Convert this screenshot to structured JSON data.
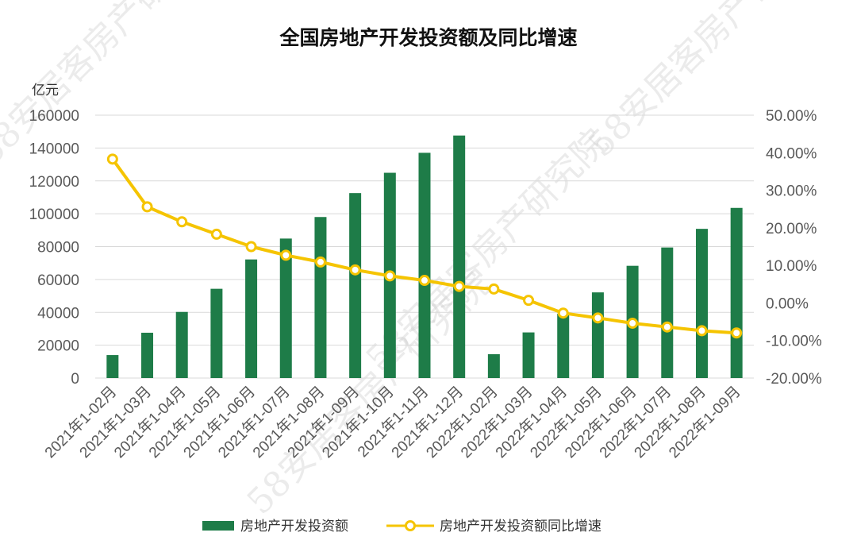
{
  "chart_data": {
    "type": "bar+line",
    "title": "全国房地产开发投资额及同比增速",
    "unit_left": "亿元",
    "categories": [
      "2021年1-02月",
      "2021年1-03月",
      "2021年1-04月",
      "2021年1-05月",
      "2021年1-06月",
      "2021年1-07月",
      "2021年1-08月",
      "2021年1-09月",
      "2021年1-10月",
      "2021年1-11月",
      "2021年1-12月",
      "2022年1-02月",
      "2022年1-03月",
      "2022年1-04月",
      "2022年1-05月",
      "2022年1-06月",
      "2022年1-07月",
      "2022年1-08月",
      "2022年1-09月"
    ],
    "series": [
      {
        "name": "房地产开发投资额",
        "type": "bar",
        "axis": "left",
        "color": "#1e7c48",
        "values": [
          13986,
          27576,
          40240,
          54318,
          72179,
          84895,
          98010,
          112559,
          124934,
          137086,
          147602,
          14499,
          27765,
          39154,
          52134,
          68314,
          79462,
          90809,
          103559
        ]
      },
      {
        "name": "房地产开发投资额同比增速",
        "type": "line",
        "axis": "right",
        "color": "#f5c400",
        "values": [
          38.3,
          25.6,
          21.6,
          18.3,
          15.0,
          12.7,
          10.9,
          8.8,
          7.2,
          6.0,
          4.4,
          3.7,
          0.7,
          -2.7,
          -4.0,
          -5.4,
          -6.4,
          -7.4,
          -8.0
        ]
      }
    ],
    "y_left": {
      "min": 0,
      "max": 160000,
      "ticks": [
        "0",
        "20000",
        "40000",
        "60000",
        "80000",
        "100000",
        "120000",
        "140000",
        "160000"
      ]
    },
    "y_right": {
      "min": -20,
      "max": 50,
      "ticks": [
        "-20.00%",
        "-10.00%",
        "0.00%",
        "10.00%",
        "20.00%",
        "30.00%",
        "40.00%",
        "50.00%"
      ]
    },
    "grid": true,
    "legend": "bottom"
  },
  "watermarks": [
    "58安居客房产研究院",
    "58安居客房产研究院",
    "58安居客房产研究院",
    "58安居客房产研究院"
  ]
}
